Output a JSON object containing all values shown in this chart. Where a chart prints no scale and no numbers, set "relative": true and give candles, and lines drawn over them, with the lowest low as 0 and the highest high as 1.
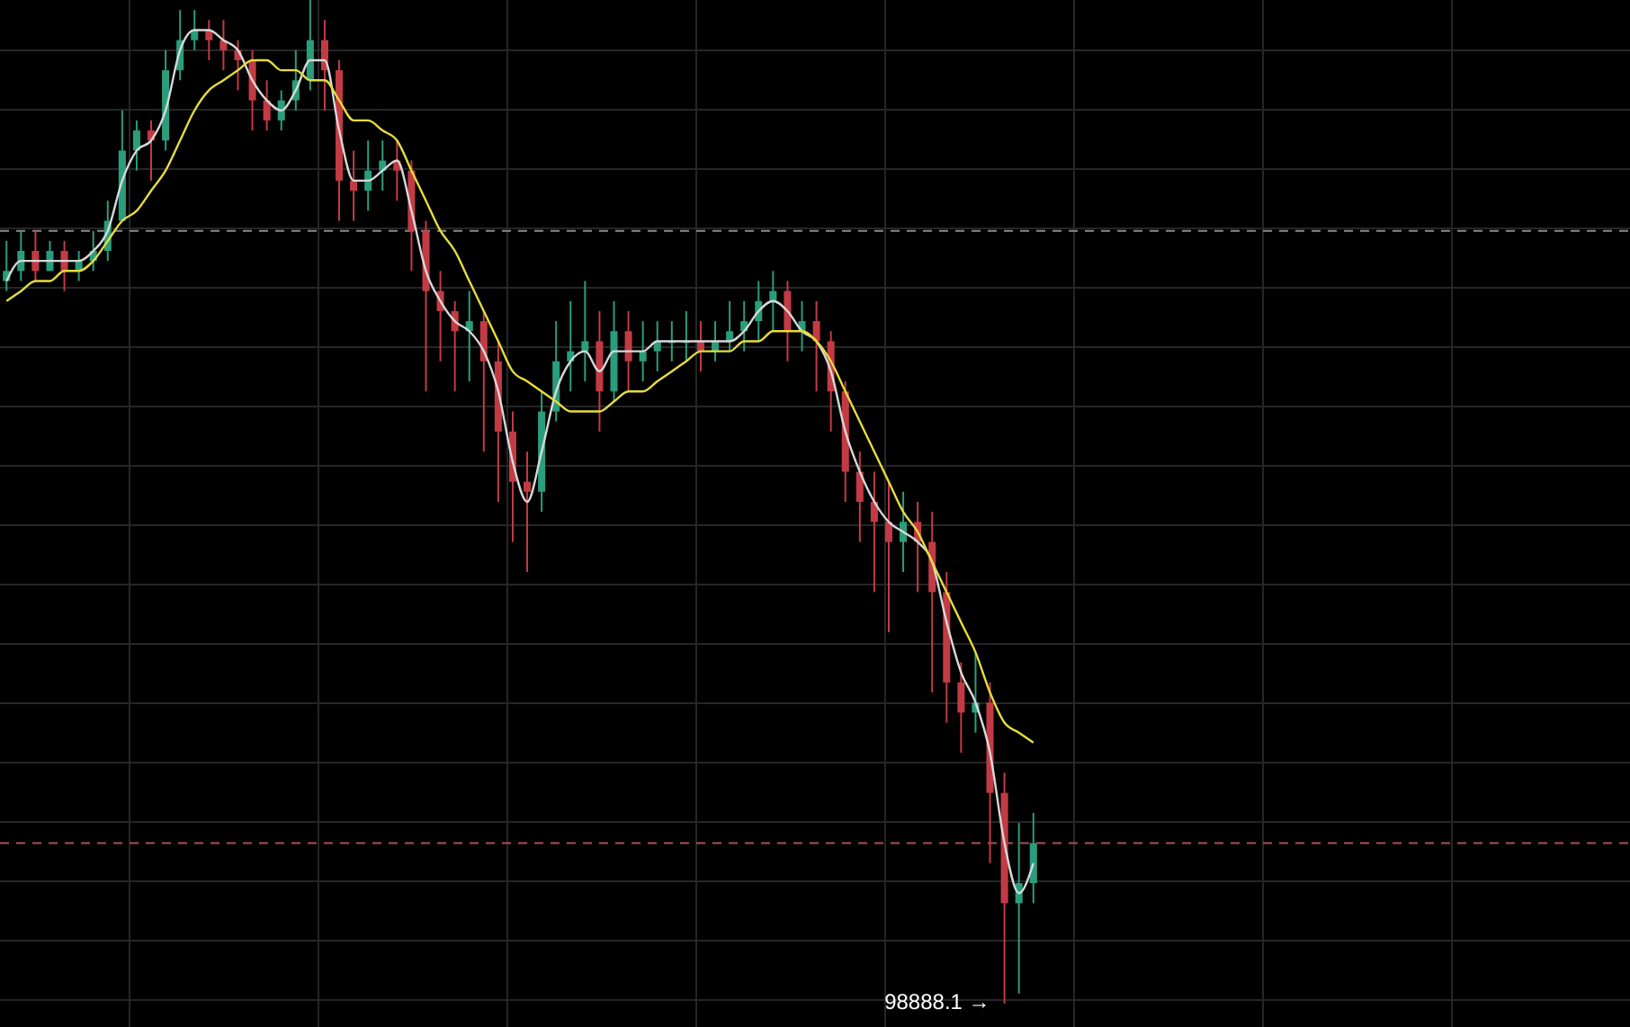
{
  "chart_data": {
    "type": "candlestick",
    "relative": true,
    "grid": true,
    "categories": [
      null,
      null,
      null,
      null,
      null,
      null,
      null,
      null,
      null,
      null,
      null,
      null,
      null,
      null,
      null,
      null,
      null,
      null,
      null,
      null,
      null,
      null,
      null,
      null,
      null,
      null,
      null,
      null,
      null,
      null,
      null,
      null,
      null,
      null,
      null,
      null,
      null,
      null,
      null,
      null,
      null,
      null,
      null,
      null,
      null,
      null,
      null,
      null,
      null,
      null,
      null,
      null,
      null,
      null,
      null,
      null,
      null,
      null,
      null,
      null,
      null,
      null,
      null,
      null,
      null,
      null,
      null,
      null,
      null,
      null,
      null,
      null
    ],
    "colors": [
      "#2a9d7c",
      "#2a9d7c",
      "#c23b44",
      "#2a9d7c",
      "#c23b44",
      "#2a9d7c",
      "#2a9d7c",
      "#2a9d7c",
      "#2a9d7c",
      "#2a9d7c",
      "#c23b44",
      "#2a9d7c",
      "#2a9d7c",
      "#2a9d7c",
      "#c23b44",
      "#c23b44",
      "#c23b44",
      "#c23b44",
      "#c23b44",
      "#2a9d7c",
      "#2a9d7c",
      "#2a9d7c",
      "#c23b44",
      "#c23b44",
      "#c23b44",
      "#2a9d7c",
      "#2a9d7c",
      "#c23b44",
      "#c23b44",
      "#c23b44",
      "#c23b44",
      "#c23b44",
      "#2a9d7c",
      "#c23b44",
      "#c23b44",
      "#c23b44",
      "#c23b44",
      "#2a9d7c",
      "#2a9d7c",
      "#2a9d7c",
      "#2a9d7c",
      "#c23b44",
      "#2a9d7c",
      "#c23b44",
      "#2a9d7c",
      "#2a9d7c",
      "#2a9d7c",
      "#2a9d7c",
      "#c23b44",
      "#2a9d7c",
      "#2a9d7c",
      "#2a9d7c",
      "#2a9d7c",
      "#2a9d7c",
      "#c23b44",
      "#2a9d7c",
      "#c23b44",
      "#c23b44",
      "#c23b44",
      "#c23b44",
      "#c23b44",
      "#c23b44",
      "#2a9d7c",
      "#c23b44",
      "#c23b44",
      "#c23b44",
      "#c23b44",
      "#2a9d7c",
      "#c23b44",
      "#c23b44",
      "#2a9d7c",
      "#2a9d7c"
    ],
    "ohlc": [
      [
        0.72,
        0.76,
        0.71,
        0.73
      ],
      [
        0.73,
        0.77,
        0.72,
        0.75
      ],
      [
        0.75,
        0.77,
        0.72,
        0.73
      ],
      [
        0.73,
        0.76,
        0.73,
        0.75
      ],
      [
        0.75,
        0.76,
        0.71,
        0.73
      ],
      [
        0.73,
        0.75,
        0.72,
        0.74
      ],
      [
        0.74,
        0.77,
        0.73,
        0.75
      ],
      [
        0.75,
        0.8,
        0.74,
        0.78
      ],
      [
        0.78,
        0.89,
        0.78,
        0.85
      ],
      [
        0.85,
        0.88,
        0.83,
        0.87
      ],
      [
        0.87,
        0.88,
        0.82,
        0.86
      ],
      [
        0.86,
        0.95,
        0.85,
        0.93
      ],
      [
        0.93,
        0.99,
        0.92,
        0.96
      ],
      [
        0.96,
        0.99,
        0.95,
        0.97
      ],
      [
        0.97,
        0.98,
        0.94,
        0.96
      ],
      [
        0.96,
        0.98,
        0.93,
        0.95
      ],
      [
        0.95,
        0.96,
        0.91,
        0.94
      ],
      [
        0.94,
        0.95,
        0.87,
        0.9
      ],
      [
        0.9,
        0.92,
        0.87,
        0.88
      ],
      [
        0.88,
        0.91,
        0.87,
        0.9
      ],
      [
        0.9,
        0.95,
        0.89,
        0.92
      ],
      [
        0.92,
        1,
        0.91,
        0.96
      ],
      [
        0.96,
        0.98,
        0.89,
        0.93
      ],
      [
        0.93,
        0.94,
        0.78,
        0.82
      ],
      [
        0.82,
        0.85,
        0.78,
        0.81
      ],
      [
        0.81,
        0.86,
        0.79,
        0.83
      ],
      [
        0.83,
        0.86,
        0.81,
        0.84
      ],
      [
        0.84,
        0.86,
        0.8,
        0.83
      ],
      [
        0.83,
        0.84,
        0.73,
        0.77
      ],
      [
        0.77,
        0.78,
        0.61,
        0.71
      ],
      [
        0.71,
        0.73,
        0.64,
        0.69
      ],
      [
        0.69,
        0.7,
        0.61,
        0.67
      ],
      [
        0.67,
        0.71,
        0.62,
        0.68
      ],
      [
        0.68,
        0.69,
        0.55,
        0.64
      ],
      [
        0.64,
        0.66,
        0.5,
        0.57
      ],
      [
        0.57,
        0.59,
        0.46,
        0.52
      ],
      [
        0.52,
        0.55,
        0.43,
        0.51
      ],
      [
        0.51,
        0.61,
        0.49,
        0.59
      ],
      [
        0.59,
        0.68,
        0.58,
        0.64
      ],
      [
        0.64,
        0.7,
        0.61,
        0.65
      ],
      [
        0.65,
        0.72,
        0.62,
        0.66
      ],
      [
        0.66,
        0.69,
        0.57,
        0.61
      ],
      [
        0.61,
        0.7,
        0.6,
        0.67
      ],
      [
        0.67,
        0.69,
        0.61,
        0.64
      ],
      [
        0.64,
        0.68,
        0.62,
        0.65
      ],
      [
        0.65,
        0.68,
        0.63,
        0.66
      ],
      [
        0.66,
        0.68,
        0.64,
        0.66
      ],
      [
        0.66,
        0.69,
        0.64,
        0.66
      ],
      [
        0.66,
        0.68,
        0.63,
        0.65
      ],
      [
        0.65,
        0.68,
        0.64,
        0.66
      ],
      [
        0.66,
        0.7,
        0.65,
        0.67
      ],
      [
        0.67,
        0.7,
        0.65,
        0.68
      ],
      [
        0.68,
        0.72,
        0.66,
        0.7
      ],
      [
        0.7,
        0.73,
        0.67,
        0.71
      ],
      [
        0.71,
        0.72,
        0.64,
        0.67
      ],
      [
        0.67,
        0.7,
        0.65,
        0.68
      ],
      [
        0.68,
        0.7,
        0.61,
        0.66
      ],
      [
        0.66,
        0.67,
        0.57,
        0.61
      ],
      [
        0.61,
        0.62,
        0.5,
        0.53
      ],
      [
        0.53,
        0.55,
        0.46,
        0.5
      ],
      [
        0.5,
        0.53,
        0.41,
        0.48
      ],
      [
        0.48,
        0.52,
        0.37,
        0.46
      ],
      [
        0.46,
        0.51,
        0.43,
        0.48
      ],
      [
        0.48,
        0.5,
        0.41,
        0.46
      ],
      [
        0.46,
        0.49,
        0.31,
        0.41
      ],
      [
        0.41,
        0.43,
        0.28,
        0.32
      ],
      [
        0.32,
        0.34,
        0.25,
        0.29
      ],
      [
        0.29,
        0.35,
        0.27,
        0.3
      ],
      [
        0.3,
        0.32,
        0.14,
        0.21
      ],
      [
        0.21,
        0.23,
        0,
        0.1
      ],
      [
        0.1,
        0.18,
        0.01,
        0.12
      ],
      [
        0.12,
        0.19,
        0.1,
        0.16
      ]
    ],
    "series": [
      {
        "type": "line",
        "color": "#d8d8d8",
        "values": [
          0.72,
          0.74,
          0.74,
          0.74,
          0.74,
          0.74,
          0.75,
          0.77,
          0.82,
          0.85,
          0.86,
          0.89,
          0.95,
          0.97,
          0.97,
          0.96,
          0.95,
          0.92,
          0.9,
          0.89,
          0.91,
          0.94,
          0.94,
          0.87,
          0.82,
          0.82,
          0.83,
          0.84,
          0.79,
          0.73,
          0.7,
          0.68,
          0.67,
          0.65,
          0.61,
          0.54,
          0.5,
          0.55,
          0.61,
          0.64,
          0.65,
          0.63,
          0.65,
          0.65,
          0.65,
          0.66,
          0.66,
          0.66,
          0.66,
          0.66,
          0.66,
          0.67,
          0.69,
          0.7,
          0.69,
          0.67,
          0.66,
          0.63,
          0.57,
          0.53,
          0.5,
          0.48,
          0.47,
          0.46,
          0.44,
          0.38,
          0.33,
          0.3,
          0.25,
          0.16,
          0.11,
          0.14
        ]
      },
      {
        "type": "line",
        "color": "#e6dc3c",
        "values": [
          0.7,
          0.71,
          0.72,
          0.72,
          0.73,
          0.73,
          0.74,
          0.76,
          0.78,
          0.79,
          0.81,
          0.83,
          0.86,
          0.89,
          0.91,
          0.92,
          0.93,
          0.94,
          0.94,
          0.93,
          0.93,
          0.92,
          0.92,
          0.9,
          0.88,
          0.88,
          0.87,
          0.86,
          0.83,
          0.8,
          0.77,
          0.75,
          0.72,
          0.69,
          0.66,
          0.63,
          0.62,
          0.61,
          0.6,
          0.59,
          0.59,
          0.59,
          0.6,
          0.61,
          0.61,
          0.62,
          0.63,
          0.64,
          0.65,
          0.65,
          0.65,
          0.66,
          0.66,
          0.67,
          0.67,
          0.67,
          0.66,
          0.64,
          0.61,
          0.58,
          0.55,
          0.52,
          0.49,
          0.47,
          0.44,
          0.41,
          0.38,
          0.35,
          0.31,
          0.28,
          0.27,
          0.26
        ]
      }
    ],
    "ref_lines": [
      {
        "axis": "y",
        "value": 0.77,
        "color": "#8a8a8a",
        "line_style": "dashed"
      },
      {
        "axis": "y",
        "value": 0.16,
        "color": "#a8505c",
        "line_style": "dashed"
      }
    ],
    "annotations": [
      "98888.1 →"
    ]
  }
}
